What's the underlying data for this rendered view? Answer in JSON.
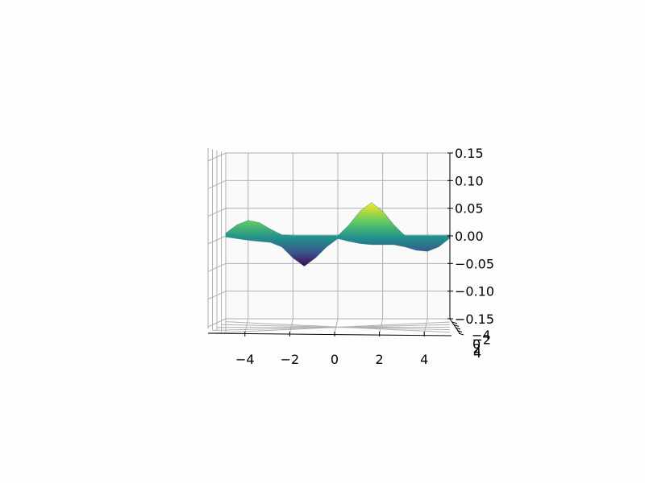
{
  "chart_data": {
    "type": "surface3d",
    "title": "",
    "xlabel": "",
    "ylabel": "",
    "zlabel": "",
    "colormap": "viridis",
    "grid": true,
    "view": "front (elevation near 0)",
    "xlim": [
      -5,
      5
    ],
    "ylim": [
      -5,
      5
    ],
    "zlim": [
      -0.15,
      0.15
    ],
    "x_ticks": [
      -4,
      -2,
      0,
      2,
      4
    ],
    "x_tick_labels": [
      "−4",
      "−2",
      "0",
      "2",
      "4"
    ],
    "y_ticks": [
      -4,
      -2,
      0,
      2,
      4
    ],
    "y_tick_labels": [
      "−4",
      "−2",
      "0",
      "2",
      "4"
    ],
    "z_ticks": [
      -0.15,
      -0.1,
      -0.05,
      0,
      0.05,
      0.1,
      0.15
    ],
    "z_tick_labels": [
      "−0.15",
      "−0.10",
      "−0.05",
      "0.00",
      "0.05",
      "0.10",
      "0.15"
    ],
    "surface_profile": {
      "x": [
        -5,
        -4.5,
        -4,
        -3.5,
        -3,
        -2.5,
        -2,
        -1.5,
        -1,
        -0.5,
        0,
        0.5,
        1,
        1.5,
        2,
        2.5,
        3,
        3.5,
        4,
        4.5,
        5
      ],
      "z_max": [
        0.005,
        0.02,
        0.028,
        0.024,
        0.012,
        0.002,
        0.0,
        0.0,
        0.0,
        0.0,
        0.0,
        0.02,
        0.045,
        0.06,
        0.045,
        0.02,
        0.0,
        0.0,
        0.0,
        0.0,
        0.0
      ],
      "z_min": [
        -0.002,
        -0.005,
        -0.008,
        -0.01,
        -0.012,
        -0.02,
        -0.04,
        -0.055,
        -0.04,
        -0.02,
        -0.005,
        -0.01,
        -0.014,
        -0.016,
        -0.016,
        -0.016,
        -0.02,
        -0.026,
        -0.028,
        -0.02,
        -0.004
      ]
    },
    "colors": {
      "background": "#fdfdfd",
      "grid": "#b0b0b0",
      "pane": "#fafafa",
      "axis": "#000000"
    }
  }
}
